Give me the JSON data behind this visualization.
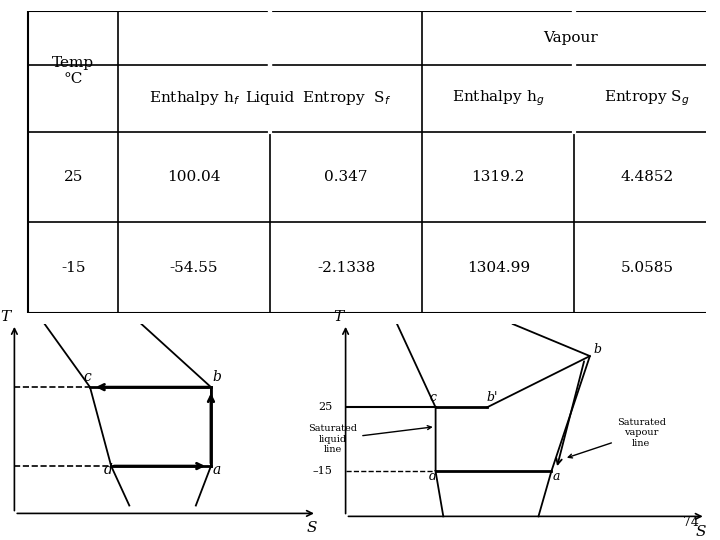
{
  "table": {
    "col_headers_row1": [
      "",
      "Liquid",
      "",
      "Vapour",
      ""
    ],
    "col_headers_row2": [
      "Temp\n°C",
      "Enthalpy h_f",
      "Entropy S_f",
      "Enthalpy h_g",
      "Entropy S_g"
    ],
    "rows": [
      [
        "25",
        "100.04",
        "0.347",
        "1319.2",
        "4.4852"
      ],
      [
        "-15",
        "-54.55",
        "-2.1338",
        "1304.99",
        "5.0585"
      ]
    ]
  },
  "bg_color": "#ffffff",
  "text_color": "#000000",
  "font_size": 11
}
